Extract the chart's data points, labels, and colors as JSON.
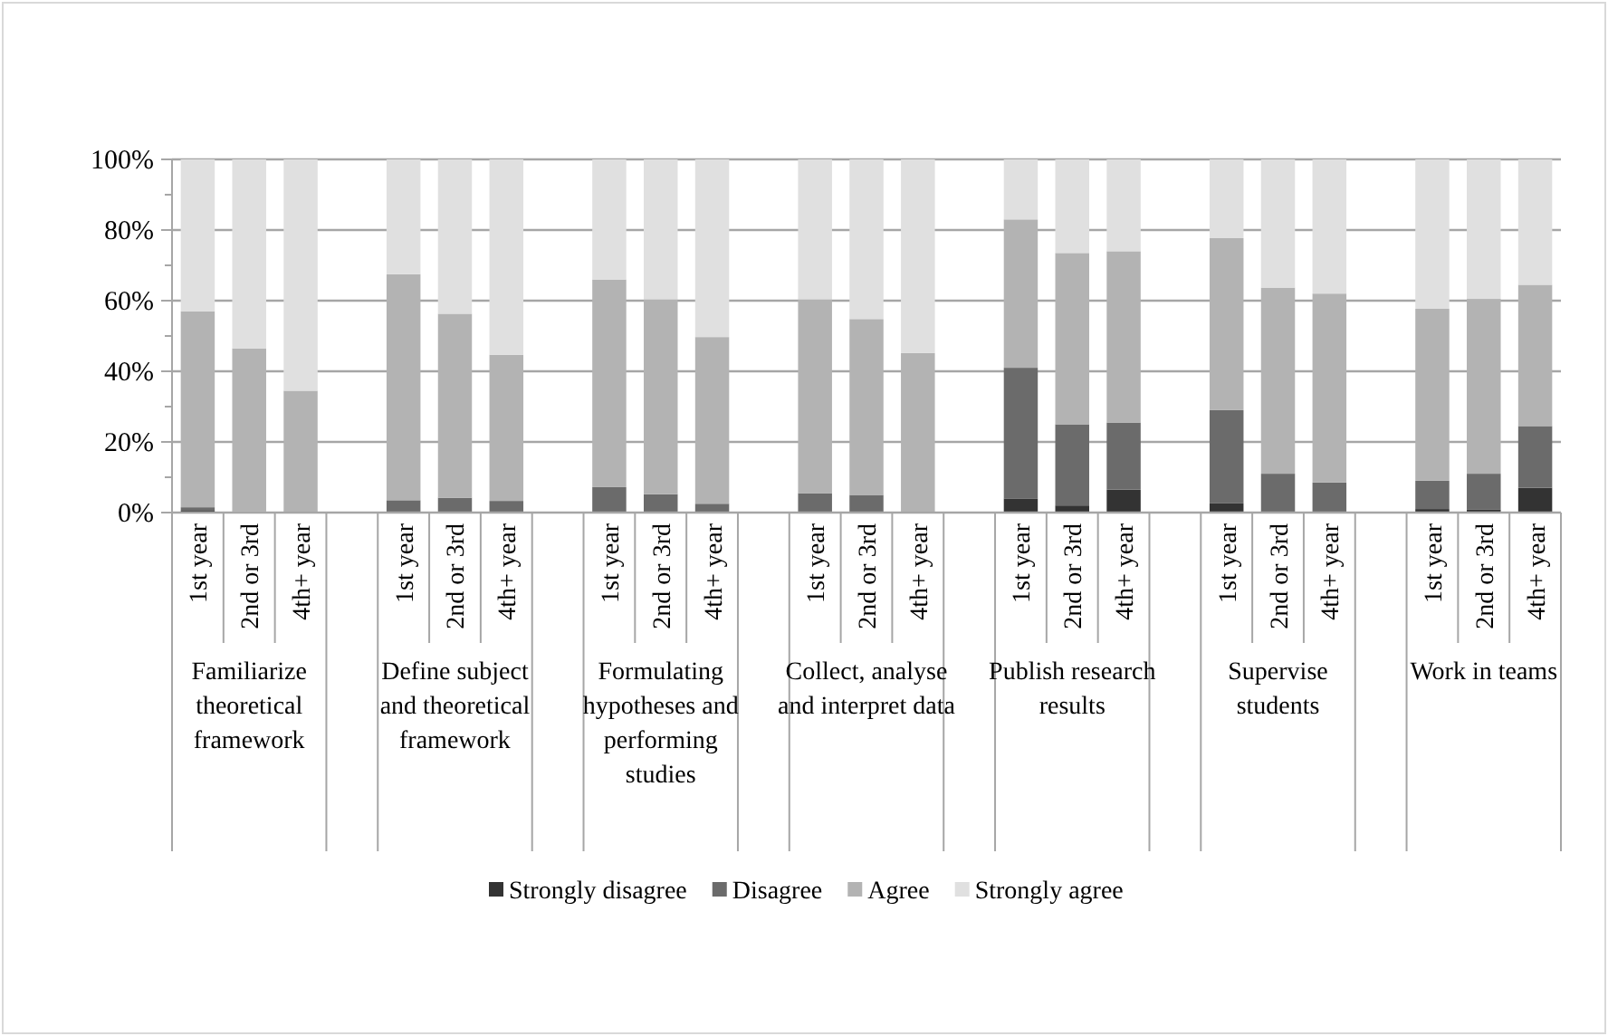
{
  "chart_data": {
    "type": "bar",
    "stacked": true,
    "categories": [
      "1st year",
      "2nd or 3rd",
      "4th+ year",
      null,
      "1st year",
      "2nd or 3rd",
      "4th+ year",
      null,
      "1st year",
      "2nd or 3rd",
      "4th+ year",
      null,
      "1st year",
      "2nd or 3rd",
      "4th+ year",
      null,
      "1st year",
      "2nd or 3rd",
      "4th+ year",
      null,
      "1st year",
      "2nd or 3rd",
      "4th+ year",
      null,
      "1st year",
      "2nd or 3rd",
      "4th+ year"
    ],
    "series": [
      {
        "name": "Strongly disagree",
        "color": "#333333",
        "values": [
          0.5,
          0,
          0,
          null,
          0,
          0,
          0,
          null,
          0,
          0,
          0,
          null,
          null,
          0,
          0,
          null,
          4,
          2,
          6.5,
          null,
          2.6,
          0,
          0,
          null,
          1,
          0.8,
          7
        ]
      },
      {
        "name": "Disagree",
        "color": "#6b6b6b",
        "values": [
          1,
          0.3,
          0,
          null,
          3.5,
          4.2,
          3.3,
          null,
          7.2,
          5.2,
          2.5,
          null,
          5.5,
          5,
          null,
          null,
          37,
          23,
          19,
          null,
          26.4,
          11,
          8.5,
          null,
          8,
          10.2,
          17.5
        ]
      },
      {
        "name": "Agree",
        "color": "#b3b3b3",
        "values": [
          55.5,
          46.2,
          34.5,
          null,
          64,
          52.1,
          41.4,
          null,
          58.8,
          55.2,
          47.2,
          null,
          54.9,
          49.8,
          45.2,
          null,
          42,
          48.5,
          48.5,
          null,
          48.7,
          52.7,
          53.5,
          null,
          48.7,
          49.5,
          40
        ]
      },
      {
        "name": "Strongly agree",
        "color": "#e0e0e0",
        "values": [
          43,
          53.5,
          65.5,
          null,
          32.5,
          43.7,
          55.3,
          null,
          34,
          39.6,
          50.3,
          null,
          39.6,
          45.2,
          54.8,
          null,
          17,
          26.5,
          26,
          null,
          22.3,
          36.3,
          38,
          null,
          42.3,
          39.5,
          35.5
        ]
      }
    ],
    "ylim": [
      0,
      100
    ],
    "yticks": [
      {
        "value": 0,
        "label": "0%"
      },
      {
        "value": 10,
        "label": null
      },
      {
        "value": 20,
        "label": "20%"
      },
      {
        "value": 30,
        "label": null
      },
      {
        "value": 40,
        "label": "40%"
      },
      {
        "value": 50,
        "label": null
      },
      {
        "value": 60,
        "label": "60%"
      },
      {
        "value": 70,
        "label": null
      },
      {
        "value": 80,
        "label": "80%"
      },
      {
        "value": 90,
        "label": null
      },
      {
        "value": 100,
        "label": "100%"
      }
    ],
    "grid": "y",
    "legend": "bottom",
    "annotations": [
      "Familiarize theoretical framework",
      "Define subject and theoretical framework",
      "Formulating hypotheses and performing studies",
      "Collect, analyse and interpret data",
      "Publish research results",
      "Supervise students",
      "Work in teams"
    ]
  }
}
